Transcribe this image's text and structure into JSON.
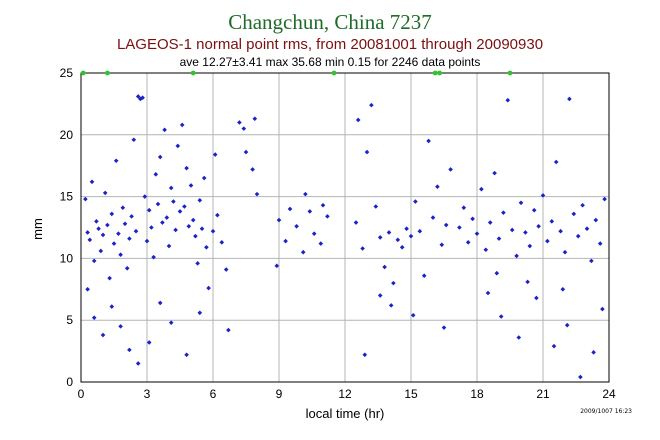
{
  "page": {
    "title": "Changchun, China 7237",
    "subtitle": "LAGEOS-1 normal point rms, from 20081001 through 20090930",
    "stats": "ave 12.27±3.41 max 35.68 min 0.15 for 2246 data points",
    "stamp": "2009/1007 16:23"
  },
  "chart_data": {
    "type": "scatter",
    "xlabel": "local time (hr)",
    "ylabel": "mm",
    "xlim": [
      0,
      24
    ],
    "ylim": [
      0,
      25
    ],
    "xticks": [
      0,
      3,
      6,
      9,
      12,
      15,
      18,
      21,
      24
    ],
    "yticks": [
      0,
      5,
      10,
      15,
      20,
      25
    ],
    "grid": true,
    "colors": {
      "points": "#1c22c8",
      "clipped": "#2ec42e",
      "grid": "#b4b4b4"
    },
    "clipped_points_at_top": [
      {
        "x": 0.1,
        "y": 25
      },
      {
        "x": 1.2,
        "y": 25
      },
      {
        "x": 5.1,
        "y": 25
      },
      {
        "x": 11.5,
        "y": 25
      },
      {
        "x": 16.1,
        "y": 25
      },
      {
        "x": 16.3,
        "y": 25
      },
      {
        "x": 19.5,
        "y": 25
      }
    ],
    "points": [
      {
        "x": 0.2,
        "y": 14.8
      },
      {
        "x": 0.3,
        "y": 12.1
      },
      {
        "x": 0.4,
        "y": 11.5
      },
      {
        "x": 0.5,
        "y": 16.2
      },
      {
        "x": 0.6,
        "y": 9.8
      },
      {
        "x": 0.7,
        "y": 13.0
      },
      {
        "x": 0.8,
        "y": 12.4
      },
      {
        "x": 0.9,
        "y": 10.6
      },
      {
        "x": 1.0,
        "y": 11.9
      },
      {
        "x": 1.1,
        "y": 15.3
      },
      {
        "x": 1.2,
        "y": 12.7
      },
      {
        "x": 1.3,
        "y": 8.4
      },
      {
        "x": 1.4,
        "y": 13.6
      },
      {
        "x": 1.5,
        "y": 11.2
      },
      {
        "x": 1.6,
        "y": 17.9
      },
      {
        "x": 1.7,
        "y": 12.0
      },
      {
        "x": 1.8,
        "y": 10.3
      },
      {
        "x": 1.9,
        "y": 14.1
      },
      {
        "x": 2.0,
        "y": 12.8
      },
      {
        "x": 2.1,
        "y": 9.2
      },
      {
        "x": 2.2,
        "y": 11.6
      },
      {
        "x": 2.3,
        "y": 13.4
      },
      {
        "x": 2.4,
        "y": 19.6
      },
      {
        "x": 2.5,
        "y": 12.2
      },
      {
        "x": 2.6,
        "y": 23.1
      },
      {
        "x": 2.7,
        "y": 22.9
      },
      {
        "x": 2.8,
        "y": 23.0
      },
      {
        "x": 2.9,
        "y": 15.0
      },
      {
        "x": 3.0,
        "y": 11.4
      },
      {
        "x": 3.1,
        "y": 13.9
      },
      {
        "x": 3.2,
        "y": 12.5
      },
      {
        "x": 3.3,
        "y": 10.1
      },
      {
        "x": 3.4,
        "y": 16.8
      },
      {
        "x": 3.5,
        "y": 14.4
      },
      {
        "x": 3.6,
        "y": 18.2
      },
      {
        "x": 3.7,
        "y": 12.9
      },
      {
        "x": 3.8,
        "y": 20.4
      },
      {
        "x": 3.9,
        "y": 13.3
      },
      {
        "x": 4.0,
        "y": 11.0
      },
      {
        "x": 4.1,
        "y": 15.7
      },
      {
        "x": 4.2,
        "y": 14.6
      },
      {
        "x": 4.3,
        "y": 12.3
      },
      {
        "x": 4.4,
        "y": 19.1
      },
      {
        "x": 4.5,
        "y": 13.8
      },
      {
        "x": 4.6,
        "y": 20.8
      },
      {
        "x": 4.7,
        "y": 14.2
      },
      {
        "x": 4.8,
        "y": 17.3
      },
      {
        "x": 4.9,
        "y": 12.6
      },
      {
        "x": 5.0,
        "y": 15.9
      },
      {
        "x": 5.1,
        "y": 13.1
      },
      {
        "x": 5.2,
        "y": 11.8
      },
      {
        "x": 5.3,
        "y": 9.6
      },
      {
        "x": 5.4,
        "y": 14.7
      },
      {
        "x": 5.5,
        "y": 12.4
      },
      {
        "x": 5.6,
        "y": 16.5
      },
      {
        "x": 5.7,
        "y": 10.9
      },
      {
        "x": 5.8,
        "y": 7.6
      },
      {
        "x": 6.0,
        "y": 12.2
      },
      {
        "x": 6.1,
        "y": 18.4
      },
      {
        "x": 6.2,
        "y": 13.5
      },
      {
        "x": 6.4,
        "y": 11.3
      },
      {
        "x": 6.6,
        "y": 9.1
      },
      {
        "x": 6.7,
        "y": 4.2
      },
      {
        "x": 7.2,
        "y": 21.0
      },
      {
        "x": 7.4,
        "y": 20.5
      },
      {
        "x": 7.5,
        "y": 18.6
      },
      {
        "x": 7.8,
        "y": 17.2
      },
      {
        "x": 7.9,
        "y": 21.3
      },
      {
        "x": 8.0,
        "y": 15.2
      },
      {
        "x": 0.3,
        "y": 7.5
      },
      {
        "x": 0.6,
        "y": 5.2
      },
      {
        "x": 1.0,
        "y": 3.8
      },
      {
        "x": 1.4,
        "y": 6.1
      },
      {
        "x": 1.8,
        "y": 4.5
      },
      {
        "x": 2.2,
        "y": 2.6
      },
      {
        "x": 2.6,
        "y": 1.5
      },
      {
        "x": 3.1,
        "y": 3.2
      },
      {
        "x": 3.6,
        "y": 6.4
      },
      {
        "x": 4.1,
        "y": 4.8
      },
      {
        "x": 4.8,
        "y": 2.2
      },
      {
        "x": 5.4,
        "y": 5.6
      },
      {
        "x": 9.0,
        "y": 13.1
      },
      {
        "x": 9.3,
        "y": 11.4
      },
      {
        "x": 9.5,
        "y": 14.0
      },
      {
        "x": 9.8,
        "y": 12.6
      },
      {
        "x": 10.1,
        "y": 10.5
      },
      {
        "x": 10.4,
        "y": 13.8
      },
      {
        "x": 10.6,
        "y": 12.0
      },
      {
        "x": 10.9,
        "y": 11.2
      },
      {
        "x": 11.2,
        "y": 13.4
      },
      {
        "x": 8.9,
        "y": 9.4
      },
      {
        "x": 10.2,
        "y": 15.2
      },
      {
        "x": 11.0,
        "y": 14.3
      },
      {
        "x": 12.5,
        "y": 12.9
      },
      {
        "x": 12.8,
        "y": 10.8
      },
      {
        "x": 13.0,
        "y": 18.6
      },
      {
        "x": 13.2,
        "y": 22.4
      },
      {
        "x": 13.4,
        "y": 14.2
      },
      {
        "x": 13.6,
        "y": 11.7
      },
      {
        "x": 13.8,
        "y": 9.3
      },
      {
        "x": 14.0,
        "y": 12.1
      },
      {
        "x": 14.2,
        "y": 8.0
      },
      {
        "x": 14.4,
        "y": 11.5
      },
      {
        "x": 14.6,
        "y": 10.9
      },
      {
        "x": 14.8,
        "y": 12.4
      },
      {
        "x": 15.0,
        "y": 11.8
      },
      {
        "x": 15.2,
        "y": 14.6
      },
      {
        "x": 15.4,
        "y": 12.2
      },
      {
        "x": 15.6,
        "y": 8.6
      },
      {
        "x": 15.8,
        "y": 19.5
      },
      {
        "x": 16.0,
        "y": 13.3
      },
      {
        "x": 16.2,
        "y": 15.8
      },
      {
        "x": 16.4,
        "y": 11.1
      },
      {
        "x": 16.6,
        "y": 12.7
      },
      {
        "x": 16.8,
        "y": 17.2
      },
      {
        "x": 13.6,
        "y": 7.0
      },
      {
        "x": 14.1,
        "y": 6.2
      },
      {
        "x": 12.9,
        "y": 2.2
      },
      {
        "x": 15.1,
        "y": 5.4
      },
      {
        "x": 16.5,
        "y": 4.4
      },
      {
        "x": 12.6,
        "y": 21.2
      },
      {
        "x": 17.2,
        "y": 12.5
      },
      {
        "x": 17.4,
        "y": 14.1
      },
      {
        "x": 17.6,
        "y": 11.3
      },
      {
        "x": 17.8,
        "y": 13.2
      },
      {
        "x": 18.0,
        "y": 12.0
      },
      {
        "x": 18.2,
        "y": 15.6
      },
      {
        "x": 18.4,
        "y": 10.7
      },
      {
        "x": 18.6,
        "y": 12.9
      },
      {
        "x": 18.8,
        "y": 16.9
      },
      {
        "x": 19.0,
        "y": 11.6
      },
      {
        "x": 19.2,
        "y": 13.7
      },
      {
        "x": 19.4,
        "y": 22.8
      },
      {
        "x": 19.6,
        "y": 12.3
      },
      {
        "x": 19.8,
        "y": 10.2
      },
      {
        "x": 20.0,
        "y": 14.5
      },
      {
        "x": 20.2,
        "y": 12.1
      },
      {
        "x": 20.4,
        "y": 11.0
      },
      {
        "x": 20.6,
        "y": 13.9
      },
      {
        "x": 20.8,
        "y": 12.6
      },
      {
        "x": 21.0,
        "y": 15.1
      },
      {
        "x": 21.2,
        "y": 11.4
      },
      {
        "x": 21.4,
        "y": 13.0
      },
      {
        "x": 21.6,
        "y": 17.8
      },
      {
        "x": 21.8,
        "y": 12.2
      },
      {
        "x": 22.0,
        "y": 10.5
      },
      {
        "x": 22.2,
        "y": 22.9
      },
      {
        "x": 22.4,
        "y": 13.6
      },
      {
        "x": 22.6,
        "y": 11.8
      },
      {
        "x": 22.8,
        "y": 14.3
      },
      {
        "x": 23.0,
        "y": 12.4
      },
      {
        "x": 23.2,
        "y": 9.8
      },
      {
        "x": 23.4,
        "y": 13.1
      },
      {
        "x": 23.6,
        "y": 11.2
      },
      {
        "x": 23.8,
        "y": 14.8
      },
      {
        "x": 18.5,
        "y": 7.2
      },
      {
        "x": 19.1,
        "y": 5.3
      },
      {
        "x": 19.9,
        "y": 3.6
      },
      {
        "x": 20.7,
        "y": 6.8
      },
      {
        "x": 21.5,
        "y": 2.9
      },
      {
        "x": 22.1,
        "y": 4.6
      },
      {
        "x": 22.7,
        "y": 0.4
      },
      {
        "x": 23.3,
        "y": 2.4
      },
      {
        "x": 23.7,
        "y": 5.9
      },
      {
        "x": 18.9,
        "y": 8.8
      },
      {
        "x": 20.3,
        "y": 8.1
      },
      {
        "x": 21.9,
        "y": 7.5
      }
    ]
  }
}
